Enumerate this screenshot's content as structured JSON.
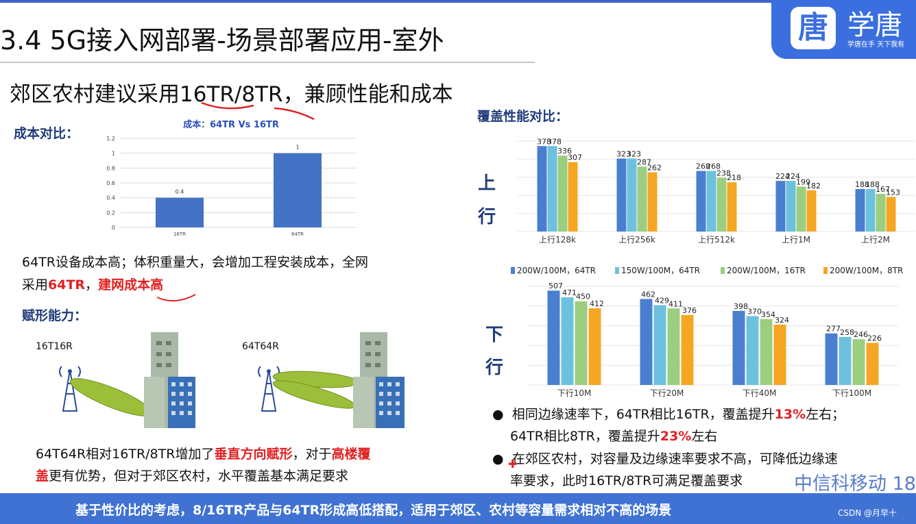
{
  "title": "3.4 5G接入网部署-场景部署应用-室外",
  "logo": {
    "glyph": "唐",
    "name": "学唐",
    "slogan": "学唐在手 天下我有"
  },
  "subtitle": "郊区农村建议采用16TR/8TR，兼顾性能和成本",
  "cost": {
    "section_label": "成本对比：",
    "para_line1": "64TR设备成本高；体积重量大，会增加工程安装成本，全网",
    "para_line2_prefix": "采用",
    "para_line2_red1": "64TR",
    "para_line2_sep": "，",
    "para_line2_red2": "建网成本高"
  },
  "beam": {
    "section_label": "赋形能力：",
    "label_left": "16T16R",
    "label_right": "64T64R",
    "para_line1_prefix": "64T64R相对16TR/8TR增加了",
    "para_line1_red1": "垂直方向赋形",
    "para_line1_mid": "，对于",
    "para_line1_red2": "高楼覆",
    "para_line2_red": "盖",
    "para_line2_rest": "更有优势，但对于郊区农村，水平覆盖基本满足要求"
  },
  "coverage": {
    "section_label": "覆盖性能对比：",
    "uplink_label": [
      "上",
      "行"
    ],
    "downlink_label": [
      "下",
      "行"
    ],
    "bullet1_line1_prefix": "相同边缘速率下，64TR相比16TR，覆盖提升",
    "bullet1_line1_red": "13%",
    "bullet1_line1_suffix": "左右；",
    "bullet1_line2_prefix": "64TR相比8TR，覆盖提升",
    "bullet1_line2_red": "23%",
    "bullet1_line2_suffix": "左右",
    "bullet2_line1": "在郊区农村，对容量及边缘速率要求不高，可降低边缘速",
    "bullet2_line2": "率要求，此时16TR/8TR可满足覆盖要求"
  },
  "bottom_bar": "基于性价比的考虑，8/16TR产品与64TR形成高低搭配，适用于郊区、农村等容量需求相对不高的场景",
  "brand_text": "中信科移动 18",
  "watermark": "CSDN @月早十",
  "colors": {
    "blue": "#4a7fd0",
    "light_blue": "#6ec0df",
    "green": "#9cce80",
    "orange": "#f5a623",
    "cost_bar": "#4472c4"
  },
  "chart_data": [
    {
      "type": "bar",
      "title": "成本：64TR Vs 16TR",
      "categories": [
        "16TR",
        "64TR"
      ],
      "values": [
        0.4,
        1
      ],
      "ylim": [
        0,
        1.2
      ],
      "yticks": [
        "0",
        "0.2",
        "0.4",
        "0.6",
        "0.8",
        "1",
        "1.2"
      ]
    },
    {
      "type": "bar",
      "categories": [
        "上行128k",
        "上行256k",
        "上行512k",
        "上行1M",
        "上行2M"
      ],
      "series": [
        {
          "name": "200W/100M，64TR",
          "values": [
            378,
            323,
            268,
            224,
            188
          ]
        },
        {
          "name": "150W/100M，64TR",
          "values": [
            378,
            323,
            268,
            224,
            188
          ]
        },
        {
          "name": "200W/100M，16TR",
          "values": [
            336,
            287,
            238,
            199,
            167
          ]
        },
        {
          "name": "200W/100M，8TR",
          "values": [
            307,
            262,
            218,
            182,
            153
          ]
        }
      ]
    },
    {
      "type": "bar",
      "categories": [
        "下行10M",
        "下行20M",
        "下行40M",
        "下行100M"
      ],
      "series": [
        {
          "name": "200W/100M，64TR",
          "values": [
            507,
            462,
            398,
            277
          ]
        },
        {
          "name": "150W/100M，64TR",
          "values": [
            471,
            429,
            370,
            258
          ]
        },
        {
          "name": "200W/100M，16TR",
          "values": [
            450,
            411,
            354,
            246
          ]
        },
        {
          "name": "200W/100M，8TR",
          "values": [
            412,
            376,
            324,
            226
          ]
        }
      ]
    }
  ]
}
